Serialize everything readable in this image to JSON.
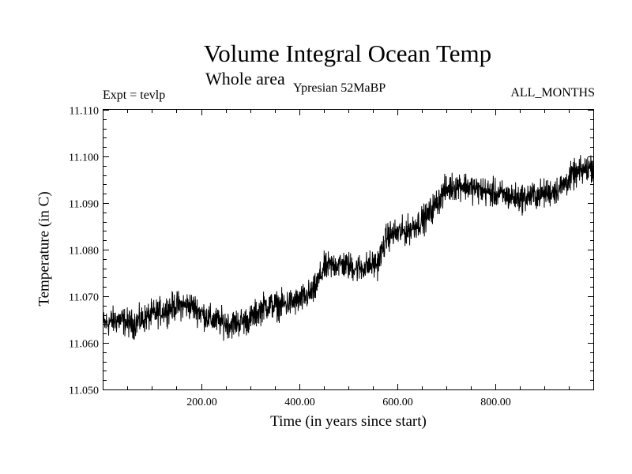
{
  "chart_data": {
    "type": "line",
    "title": "Volume Integral Ocean Temp",
    "subtitle": "Whole area",
    "experiment_label": "Expt = tevlp",
    "period_label": "Ypresian  52MaBP",
    "season_label": "ALL_MONTHS",
    "xlabel": "Time (in years since start)",
    "ylabel": "Temperature (in C)",
    "xlim": [
      1,
      1000
    ],
    "ylim": [
      11.05,
      11.11
    ],
    "x_ticks": [
      200,
      400,
      600,
      800
    ],
    "x_tick_labels": [
      "200.00",
      "400.00",
      "600.00",
      "800.00"
    ],
    "y_ticks": [
      11.05,
      11.06,
      11.07,
      11.08,
      11.09,
      11.1,
      11.11
    ],
    "y_tick_labels": [
      "11.050",
      "11.060",
      "11.070",
      "11.080",
      "11.090",
      "11.100",
      "11.110"
    ],
    "grid": false,
    "series": [
      {
        "name": "Volume Integral Ocean Temp",
        "trend_x": [
          1,
          30,
          60,
          100,
          150,
          180,
          220,
          260,
          300,
          330,
          360,
          400,
          430,
          450,
          480,
          520,
          560,
          580,
          620,
          660,
          700,
          730,
          760,
          800,
          850,
          900,
          930,
          960,
          1000
        ],
        "trend_y": [
          11.064,
          11.065,
          11.064,
          11.066,
          11.068,
          11.068,
          11.065,
          11.064,
          11.065,
          11.068,
          11.068,
          11.069,
          11.071,
          11.076,
          11.077,
          11.076,
          11.077,
          11.083,
          11.084,
          11.087,
          11.093,
          11.094,
          11.093,
          11.092,
          11.091,
          11.092,
          11.093,
          11.096,
          11.098
        ],
        "fluctuation_amplitude": 0.0045
      }
    ]
  }
}
